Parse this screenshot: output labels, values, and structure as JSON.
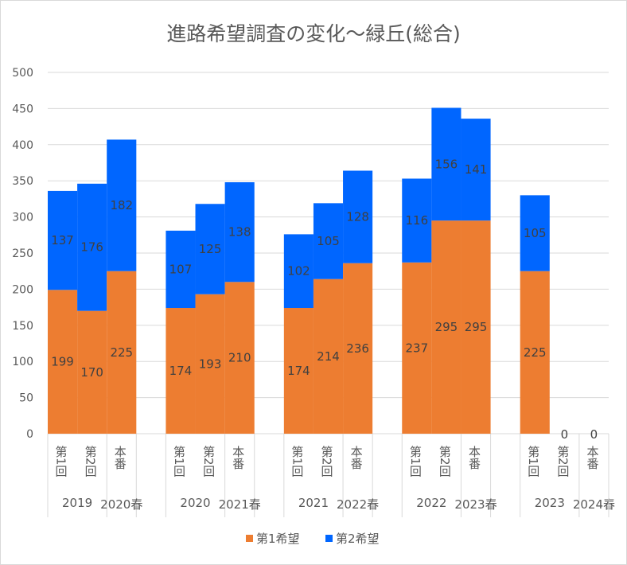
{
  "chart_data": {
    "type": "bar",
    "stacked": true,
    "title": "進路希望調査の変化～緑丘(総合)",
    "xlabel": "",
    "ylabel": "",
    "ylim": [
      0,
      500
    ],
    "yticks": [
      0,
      50,
      100,
      150,
      200,
      250,
      300,
      350,
      400,
      450,
      500
    ],
    "grid": true,
    "legend_position": "bottom",
    "groups": [
      {
        "labels": [
          "2019",
          "2020春"
        ],
        "categories": [
          "第1回",
          "第2回",
          "本番"
        ]
      },
      {
        "labels": [
          "2020",
          "2021春"
        ],
        "categories": [
          "第1回",
          "第2回",
          "本番"
        ]
      },
      {
        "labels": [
          "2021",
          "2022春"
        ],
        "categories": [
          "第1回",
          "第2回",
          "本番"
        ]
      },
      {
        "labels": [
          "2022",
          "2023春"
        ],
        "categories": [
          "第1回",
          "第2回",
          "本番"
        ]
      },
      {
        "labels": [
          "2023",
          "2024春"
        ],
        "categories": [
          "第1回",
          "第2回",
          "本番"
        ]
      }
    ],
    "series": [
      {
        "name": "第1希望",
        "color": "#ED7D31",
        "values": [
          199,
          170,
          225,
          174,
          193,
          210,
          174,
          214,
          236,
          237,
          295,
          295,
          225,
          0,
          0
        ]
      },
      {
        "name": "第2希望",
        "color": "#0066FF",
        "values": [
          137,
          176,
          182,
          107,
          125,
          138,
          102,
          105,
          128,
          116,
          156,
          141,
          105,
          null,
          null
        ]
      }
    ]
  }
}
